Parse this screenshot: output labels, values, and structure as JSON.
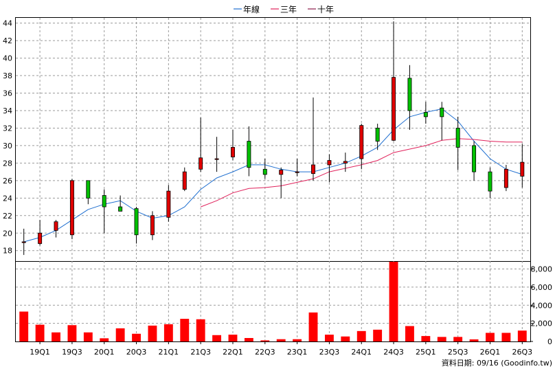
{
  "legend": [
    {
      "label": "年線",
      "color": "#1f6fd0"
    },
    {
      "label": "三年",
      "color": "#e0205a"
    },
    {
      "label": "十年",
      "color": "#8b1a4a"
    }
  ],
  "credit": "資料日期: 09/16 (Goodinfo.tw)",
  "colors": {
    "up": "#e00000",
    "down": "#00c000",
    "volume": "#ff0000",
    "grid": "#9a9a9a",
    "frame": "#000000"
  },
  "chart_data": {
    "type": "candlestick",
    "x_ticks": [
      "19Q1",
      "19Q3",
      "20Q1",
      "20Q3",
      "21Q1",
      "21Q3",
      "22Q1",
      "22Q3",
      "23Q1",
      "23Q3",
      "24Q1",
      "24Q3",
      "25Q1",
      "25Q3",
      "26Q1",
      "26Q3"
    ],
    "price_axis": {
      "ylim": [
        16.8,
        44.6
      ],
      "ticks": [
        18,
        20,
        22,
        24,
        26,
        28,
        30,
        32,
        34,
        36,
        38,
        40,
        42,
        44
      ]
    },
    "volume_axis": {
      "ylim": [
        0,
        8800
      ],
      "ticks": [
        "0",
        "2,000",
        "4,000",
        "6,000",
        "8,000"
      ]
    },
    "candles": [
      {
        "o": 19.0,
        "h": 20.5,
        "l": 17.5,
        "c": 19.0
      },
      {
        "o": 18.8,
        "h": 21.5,
        "l": 18.6,
        "c": 20.0
      },
      {
        "o": 20.3,
        "h": 21.5,
        "l": 19.5,
        "c": 21.3
      },
      {
        "o": 19.8,
        "h": 26.2,
        "l": 19.3,
        "c": 26.0
      },
      {
        "o": 26.0,
        "h": 26.0,
        "l": 23.3,
        "c": 24.0
      },
      {
        "o": 24.3,
        "h": 25.0,
        "l": 20.0,
        "c": 23.0
      },
      {
        "o": 23.0,
        "h": 24.3,
        "l": 22.5,
        "c": 22.5
      },
      {
        "o": 22.8,
        "h": 23.0,
        "l": 18.8,
        "c": 19.8
      },
      {
        "o": 19.8,
        "h": 22.5,
        "l": 19.2,
        "c": 22.0
      },
      {
        "o": 21.8,
        "h": 25.5,
        "l": 21.3,
        "c": 24.8
      },
      {
        "o": 25.0,
        "h": 27.5,
        "l": 24.8,
        "c": 27.0
      },
      {
        "o": 27.3,
        "h": 33.2,
        "l": 27.0,
        "c": 28.6
      },
      {
        "o": 28.5,
        "h": 31.0,
        "l": 27.0,
        "c": 28.5
      },
      {
        "o": 28.7,
        "h": 31.8,
        "l": 28.3,
        "c": 29.8
      },
      {
        "o": 30.5,
        "h": 32.2,
        "l": 26.5,
        "c": 27.5
      },
      {
        "o": 27.3,
        "h": 28.5,
        "l": 26.2,
        "c": 26.7
      },
      {
        "o": 26.7,
        "h": 27.5,
        "l": 24.0,
        "c": 27.2
      },
      {
        "o": 27.0,
        "h": 28.5,
        "l": 26.5,
        "c": 27.0
      },
      {
        "o": 26.8,
        "h": 35.5,
        "l": 26.0,
        "c": 27.8
      },
      {
        "o": 27.8,
        "h": 29.0,
        "l": 25.8,
        "c": 28.3
      },
      {
        "o": 28.0,
        "h": 29.2,
        "l": 27.0,
        "c": 28.2
      },
      {
        "o": 28.5,
        "h": 32.5,
        "l": 27.3,
        "c": 32.3
      },
      {
        "o": 32.0,
        "h": 32.5,
        "l": 29.5,
        "c": 30.5
      },
      {
        "o": 30.6,
        "h": 44.2,
        "l": 30.5,
        "c": 37.8
      },
      {
        "o": 37.7,
        "h": 39.2,
        "l": 31.8,
        "c": 34.0
      },
      {
        "o": 33.8,
        "h": 35.0,
        "l": 32.5,
        "c": 33.3
      },
      {
        "o": 34.3,
        "h": 35.0,
        "l": 30.6,
        "c": 33.3
      },
      {
        "o": 32.0,
        "h": 33.3,
        "l": 27.2,
        "c": 29.8
      },
      {
        "o": 30.0,
        "h": 30.5,
        "l": 26.0,
        "c": 27.0
      },
      {
        "o": 27.0,
        "h": 27.5,
        "l": 24.0,
        "c": 24.8
      },
      {
        "o": 25.2,
        "h": 27.8,
        "l": 24.8,
        "c": 27.3
      },
      {
        "o": 26.5,
        "h": 30.2,
        "l": 25.2,
        "c": 28.1
      }
    ],
    "volume": [
      3300,
      1850,
      1000,
      1800,
      1000,
      350,
      1450,
      850,
      1750,
      1900,
      2500,
      2450,
      700,
      750,
      380,
      120,
      250,
      250,
      3200,
      750,
      550,
      1150,
      1300,
      8850,
      1700,
      600,
      500,
      500,
      230,
      950,
      950,
      1200
    ],
    "series": [
      {
        "name": "年線",
        "start_index": 0,
        "values": [
          19.0,
          19.5,
          20.3,
          21.5,
          22.7,
          23.3,
          23.7,
          22.5,
          21.7,
          22.0,
          23.0,
          25.0,
          26.3,
          27.0,
          27.8,
          27.8,
          27.3,
          27.0,
          27.0,
          27.5,
          28.0,
          28.8,
          29.8,
          31.8,
          33.3,
          33.8,
          34.2,
          32.8,
          30.5,
          28.5,
          27.3,
          26.7
        ]
      },
      {
        "name": "三年",
        "start_index": 11,
        "values": [
          23.0,
          23.7,
          24.6,
          25.1,
          25.2,
          25.4,
          25.8,
          26.2,
          27.0,
          27.4,
          27.8,
          28.3,
          29.2,
          29.6,
          30.0,
          30.6,
          30.8,
          30.7,
          30.5,
          30.4,
          30.4
        ]
      },
      {
        "name": "十年",
        "start_index": 0,
        "values": []
      }
    ]
  }
}
